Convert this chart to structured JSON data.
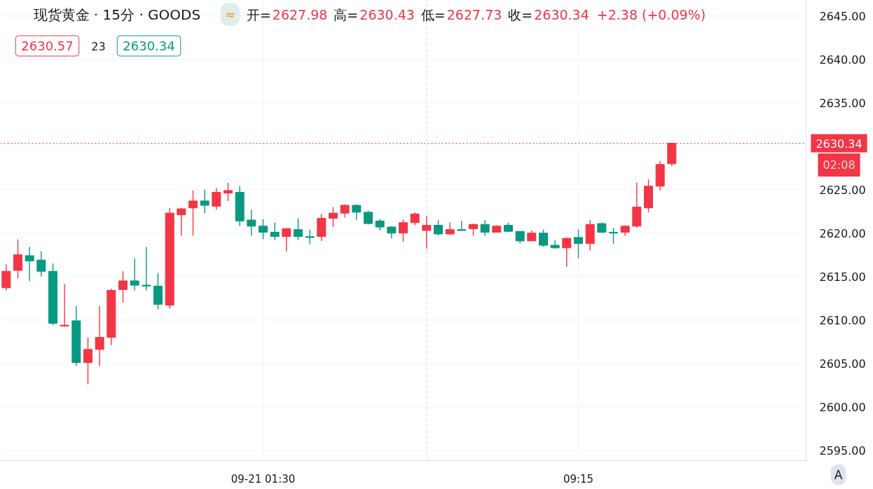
{
  "chart_data": {
    "type": "candlestick",
    "title": "现货黄金 · 15分 · GOODS",
    "categories": [
      null,
      null,
      null,
      null,
      null,
      null,
      null,
      null,
      null,
      null,
      null,
      null,
      null,
      null,
      null,
      null,
      null,
      null,
      null,
      null,
      null,
      null,
      "09-21 01:30",
      null,
      null,
      null,
      null,
      null,
      null,
      null,
      null,
      null,
      null,
      null,
      null,
      null,
      null,
      null,
      null,
      null,
      null,
      null,
      null,
      null,
      null,
      null,
      null,
      null,
      null,
      "09:15",
      null,
      null,
      null,
      null,
      null,
      null,
      null,
      null,
      null,
      null,
      null,
      null,
      null,
      null,
      null,
      null,
      null,
      null,
      null
    ],
    "ohlc": [
      [
        2613.7,
        2616.4,
        2613.4,
        2615.6
      ],
      [
        2615.7,
        2619.3,
        2614.8,
        2617.5
      ],
      [
        2617.4,
        2618.4,
        2614.5,
        2616.8
      ],
      [
        2616.9,
        2617.9,
        2615.0,
        2615.6
      ],
      [
        2615.6,
        2616.5,
        2609.4,
        2609.6
      ],
      [
        2609.3,
        2614.1,
        2609.2,
        2609.4
      ],
      [
        2609.9,
        2611.6,
        2604.7,
        2605.1
      ],
      [
        2605.1,
        2608.0,
        2602.6,
        2606.6
      ],
      [
        2606.6,
        2611.6,
        2604.7,
        2608.0
      ],
      [
        2608.0,
        2613.6,
        2607.1,
        2613.4
      ],
      [
        2613.5,
        2615.6,
        2612.0,
        2614.5
      ],
      [
        2614.5,
        2617.1,
        2613.4,
        2614.0
      ],
      [
        2614.0,
        2618.4,
        2613.4,
        2613.9
      ],
      [
        2613.9,
        2615.4,
        2611.2,
        2611.8
      ],
      [
        2611.7,
        2622.9,
        2611.3,
        2622.3
      ],
      [
        2622.1,
        2622.9,
        2619.7,
        2622.8
      ],
      [
        2622.9,
        2624.9,
        2619.7,
        2623.7
      ],
      [
        2623.7,
        2625.0,
        2622.3,
        2623.2
      ],
      [
        2623.1,
        2625.2,
        2622.7,
        2624.7
      ],
      [
        2624.6,
        2625.8,
        2623.7,
        2624.9
      ],
      [
        2624.7,
        2625.4,
        2620.8,
        2621.4
      ],
      [
        2621.5,
        2622.7,
        2619.7,
        2620.8
      ],
      [
        2620.8,
        2621.6,
        2619.3,
        2620.1
      ],
      [
        2620.1,
        2621.2,
        2619.2,
        2619.6
      ],
      [
        2619.6,
        2620.6,
        2617.9,
        2620.5
      ],
      [
        2620.4,
        2621.7,
        2619.2,
        2619.6
      ],
      [
        2619.6,
        2620.4,
        2618.7,
        2619.5
      ],
      [
        2619.6,
        2622.2,
        2619.1,
        2621.7
      ],
      [
        2621.7,
        2623.0,
        2620.7,
        2622.3
      ],
      [
        2622.3,
        2623.3,
        2621.8,
        2623.2
      ],
      [
        2623.2,
        2623.3,
        2621.5,
        2622.4
      ],
      [
        2622.4,
        2622.6,
        2621.0,
        2621.1
      ],
      [
        2621.4,
        2621.6,
        2620.3,
        2620.7
      ],
      [
        2620.7,
        2620.8,
        2619.4,
        2620.0
      ],
      [
        2620.0,
        2621.6,
        2619.0,
        2621.2
      ],
      [
        2621.2,
        2622.4,
        2620.9,
        2622.2
      ],
      [
        2620.3,
        2622.0,
        2618.2,
        2620.9
      ],
      [
        2620.9,
        2621.5,
        2619.7,
        2619.9
      ],
      [
        2619.9,
        2621.2,
        2619.8,
        2620.4
      ],
      [
        2620.4,
        2621.4,
        2620.3,
        2620.3
      ],
      [
        2620.5,
        2621.1,
        2619.7,
        2621.0
      ],
      [
        2621.0,
        2621.5,
        2619.7,
        2620.1
      ],
      [
        2620.1,
        2620.9,
        2620.1,
        2620.8
      ],
      [
        2620.9,
        2621.2,
        2620.1,
        2620.2
      ],
      [
        2620.2,
        2620.2,
        2618.8,
        2619.1
      ],
      [
        2619.1,
        2620.3,
        2619.1,
        2620.0
      ],
      [
        2620.0,
        2620.4,
        2618.4,
        2618.6
      ],
      [
        2618.6,
        2619.2,
        2618.2,
        2618.3
      ],
      [
        2618.3,
        2619.5,
        2616.1,
        2619.4
      ],
      [
        2619.5,
        2620.4,
        2617.1,
        2618.8
      ],
      [
        2618.8,
        2621.5,
        2618.0,
        2621.0
      ],
      [
        2621.1,
        2621.2,
        2620.0,
        2620.1
      ],
      [
        2620.1,
        2620.6,
        2618.8,
        2620.0
      ],
      [
        2620.1,
        2620.9,
        2619.7,
        2620.8
      ],
      [
        2620.8,
        2625.8,
        2620.6,
        2623.0
      ],
      [
        2622.9,
        2626.2,
        2622.4,
        2625.4
      ],
      [
        2625.4,
        2628.3,
        2624.9,
        2627.9
      ],
      [
        2627.98,
        2630.43,
        2627.73,
        2630.34
      ],
      null,
      null,
      null,
      null,
      null,
      null,
      null,
      null,
      null,
      null,
      null
    ],
    "colors": [
      "#f23645",
      "#f23645",
      "#089981",
      "#089981",
      "#089981",
      "#f23645",
      "#089981",
      "#f23645",
      "#f23645",
      "#f23645",
      "#f23645",
      "#089981",
      "#089981",
      "#089981",
      "#f23645",
      "#f23645",
      "#f23645",
      "#089981",
      "#f23645",
      "#f23645",
      "#089981",
      "#089981",
      "#089981",
      "#089981",
      "#f23645",
      "#089981",
      "#089981",
      "#f23645",
      "#f23645",
      "#f23645",
      "#089981",
      "#089981",
      "#089981",
      "#089981",
      "#f23645",
      "#f23645",
      "#f23645",
      "#089981",
      "#f23645",
      "#089981",
      "#f23645",
      "#089981",
      "#f23645",
      "#089981",
      "#089981",
      "#f23645",
      "#089981",
      "#089981",
      "#f23645",
      "#089981",
      "#f23645",
      "#089981",
      "#089981",
      "#f23645",
      "#f23645",
      "#f23645",
      "#f23645",
      "#f23645",
      null,
      null,
      null,
      null,
      null,
      null,
      null,
      null,
      null,
      null,
      null
    ],
    "ylim": [
      2593.8,
      2646.8
    ],
    "yticks": [
      {
        "value": 2595,
        "label": "2595.00"
      },
      {
        "value": 2600,
        "label": "2600.00"
      },
      {
        "value": 2605,
        "label": "2605.00"
      },
      {
        "value": 2610,
        "label": "2610.00"
      },
      {
        "value": 2615,
        "label": "2615.00"
      },
      {
        "value": 2620,
        "label": "2620.00"
      },
      {
        "value": 2625,
        "label": "2625.00"
      },
      {
        "value": 2630,
        "label": null
      },
      {
        "value": 2635,
        "label": "2635.00"
      },
      {
        "value": 2640,
        "label": "2640.00"
      },
      {
        "value": 2645,
        "label": "2645.00"
      }
    ],
    "grid": true,
    "ref_lines": [
      {
        "axis": "y",
        "value": 2630.34,
        "label": "2630.34",
        "color": "#f23645",
        "line_style": "dotted"
      }
    ],
    "annotations": [
      "开=2627.98",
      "高=2630.43",
      "低=2627.73",
      "收=2630.34",
      "+2.38 (+0.09%)",
      "≈",
      "2630.57",
      "23",
      "2630.34",
      "02:08",
      "A"
    ]
  }
}
